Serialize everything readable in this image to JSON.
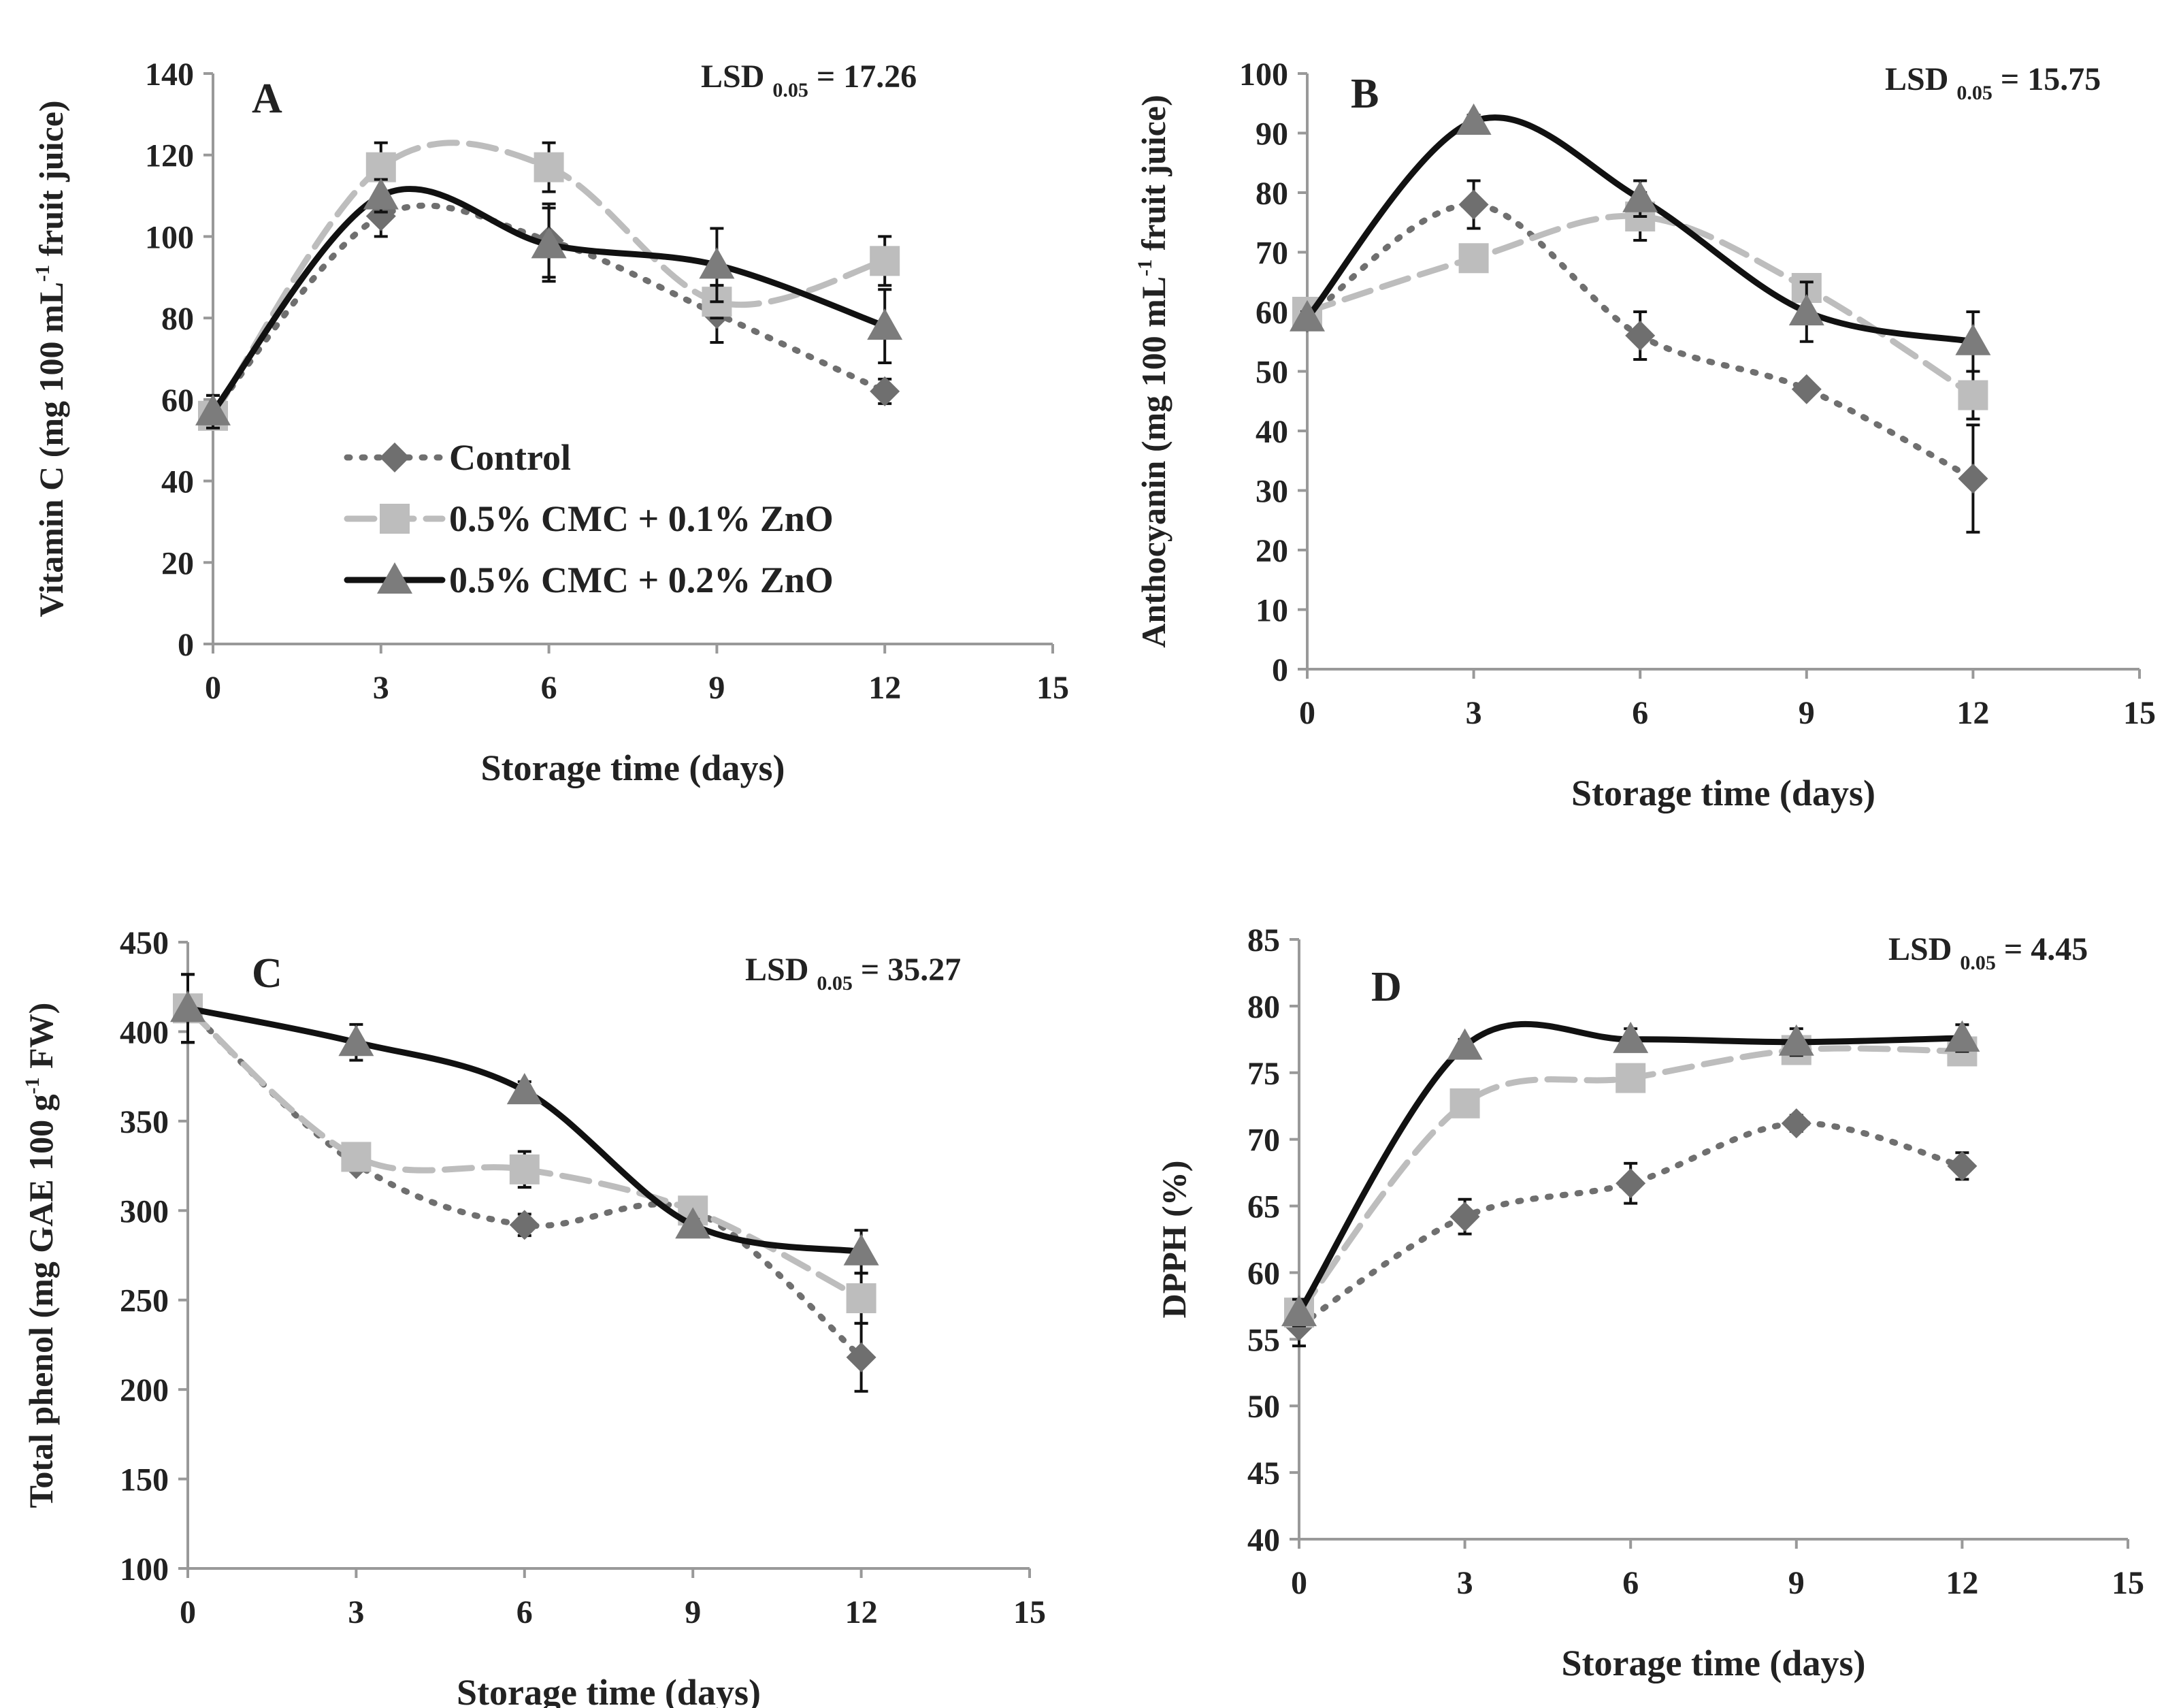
{
  "legend": [
    {
      "name": "Control",
      "marker": "diamond",
      "color": "#6f6f6f",
      "dash": "dotted"
    },
    {
      "name": "0.5% CMC + 0.1% ZnO",
      "marker": "square",
      "color": "#bdbdbd",
      "dash": "dashed"
    },
    {
      "name": "0.5% CMC + 0.2% ZnO",
      "marker": "triangle",
      "color": "#111111",
      "dash": "solid",
      "marker_color": "#7c7c7c"
    }
  ],
  "chart_data": [
    {
      "type": "line",
      "panel": "A",
      "xlabel": "Storage time (days)",
      "ylabel": [
        "Vitamin C (mg 100 mL",
        "-1",
        " fruit juice)"
      ],
      "lsd": [
        "LSD",
        "0.05",
        "= 17.26"
      ],
      "x": [
        0,
        3,
        6,
        9,
        12
      ],
      "xlim": [
        0,
        15
      ],
      "xticks": [
        0,
        3,
        6,
        9,
        12,
        15
      ],
      "ylim": [
        0,
        140
      ],
      "yticks": [
        0,
        20,
        40,
        60,
        80,
        100,
        120,
        140
      ],
      "legend_position": "bottom-center",
      "series": [
        {
          "name": "Control",
          "values": [
            57,
            105,
            99,
            81,
            62
          ],
          "err": [
            4,
            5,
            9,
            7,
            3
          ]
        },
        {
          "name": "0.5% CMC + 0.1% ZnO",
          "values": [
            56,
            117,
            117,
            84,
            94
          ],
          "err": [
            3,
            6,
            6,
            4,
            6
          ]
        },
        {
          "name": "0.5% CMC + 0.2% ZnO",
          "values": [
            57,
            110,
            98,
            93,
            78
          ],
          "err": [
            4,
            4,
            9,
            9,
            9
          ]
        }
      ]
    },
    {
      "type": "line",
      "panel": "B",
      "xlabel": "Storage time (days)",
      "ylabel": [
        "Anthocyanin (mg  100 mL",
        "-1",
        " fruit juice)"
      ],
      "lsd": [
        "LSD",
        "0.05",
        "= 15.75"
      ],
      "x": [
        0,
        3,
        6,
        9,
        12
      ],
      "xlim": [
        0,
        15
      ],
      "xticks": [
        0,
        3,
        6,
        9,
        12,
        15
      ],
      "ylim": [
        0,
        100
      ],
      "yticks": [
        0,
        10,
        20,
        30,
        40,
        50,
        60,
        70,
        80,
        90,
        100
      ],
      "series": [
        {
          "name": "Control",
          "values": [
            59,
            78,
            56,
            47,
            32
          ],
          "err": [
            1,
            4,
            4,
            1,
            9
          ]
        },
        {
          "name": "0.5% CMC + 0.1% ZnO",
          "values": [
            60,
            69,
            76,
            64,
            46
          ],
          "err": [
            1,
            1,
            4,
            1,
            4
          ]
        },
        {
          "name": "0.5% CMC + 0.2% ZnO",
          "values": [
            59,
            92,
            79,
            60,
            55
          ],
          "err": [
            1,
            1,
            3,
            5,
            5
          ]
        }
      ]
    },
    {
      "type": "line",
      "panel": "C",
      "xlabel": "Storage time (days)",
      "ylabel": [
        "Total phenol (mg GAE 100 g",
        "-1",
        " FW)"
      ],
      "lsd": [
        "LSD",
        "0.05",
        "= 35.27"
      ],
      "x": [
        0,
        3,
        6,
        9,
        12
      ],
      "xlim": [
        0,
        15
      ],
      "xticks": [
        0,
        3,
        6,
        9,
        12,
        15
      ],
      "ylim": [
        100,
        450
      ],
      "yticks": [
        100,
        150,
        200,
        250,
        300,
        350,
        400,
        450
      ],
      "series": [
        {
          "name": "Control",
          "values": [
            413,
            326,
            292,
            300,
            218
          ],
          "err": [
            19,
            4,
            6,
            3,
            19
          ]
        },
        {
          "name": "0.5% CMC + 0.1% ZnO",
          "values": [
            413,
            330,
            323,
            300,
            251
          ],
          "err": [
            19,
            4,
            10,
            3,
            14
          ]
        },
        {
          "name": "0.5% CMC + 0.2% ZnO",
          "values": [
            413,
            394,
            367,
            292,
            277
          ],
          "err": [
            19,
            10,
            5,
            3,
            12
          ]
        }
      ]
    },
    {
      "type": "line",
      "panel": "D",
      "xlabel": "Storage time (days)",
      "ylabel": [
        "DPPH (%)",
        "",
        ""
      ],
      "lsd": [
        "LSD",
        "0.05",
        "= 4.45"
      ],
      "x": [
        0,
        3,
        6,
        9,
        12
      ],
      "xlim": [
        0,
        15
      ],
      "xticks": [
        0,
        3,
        6,
        9,
        12,
        15
      ],
      "ylim": [
        40,
        85
      ],
      "yticks": [
        40,
        45,
        50,
        55,
        60,
        65,
        70,
        75,
        80,
        85
      ],
      "series": [
        {
          "name": "Control",
          "values": [
            56,
            64.2,
            66.7,
            71.2,
            68
          ],
          "err": [
            1.5,
            1.3,
            1.5,
            0.6,
            1
          ]
        },
        {
          "name": "0.5% CMC + 0.1% ZnO",
          "values": [
            57,
            72.7,
            74.6,
            76.7,
            76.6
          ],
          "err": [
            1,
            0.5,
            1,
            0.5,
            0.5
          ]
        },
        {
          "name": "0.5% CMC + 0.2% ZnO",
          "values": [
            57,
            77,
            77.5,
            77.3,
            77.6
          ],
          "err": [
            1,
            0.5,
            0.8,
            1,
            1
          ]
        }
      ]
    }
  ]
}
